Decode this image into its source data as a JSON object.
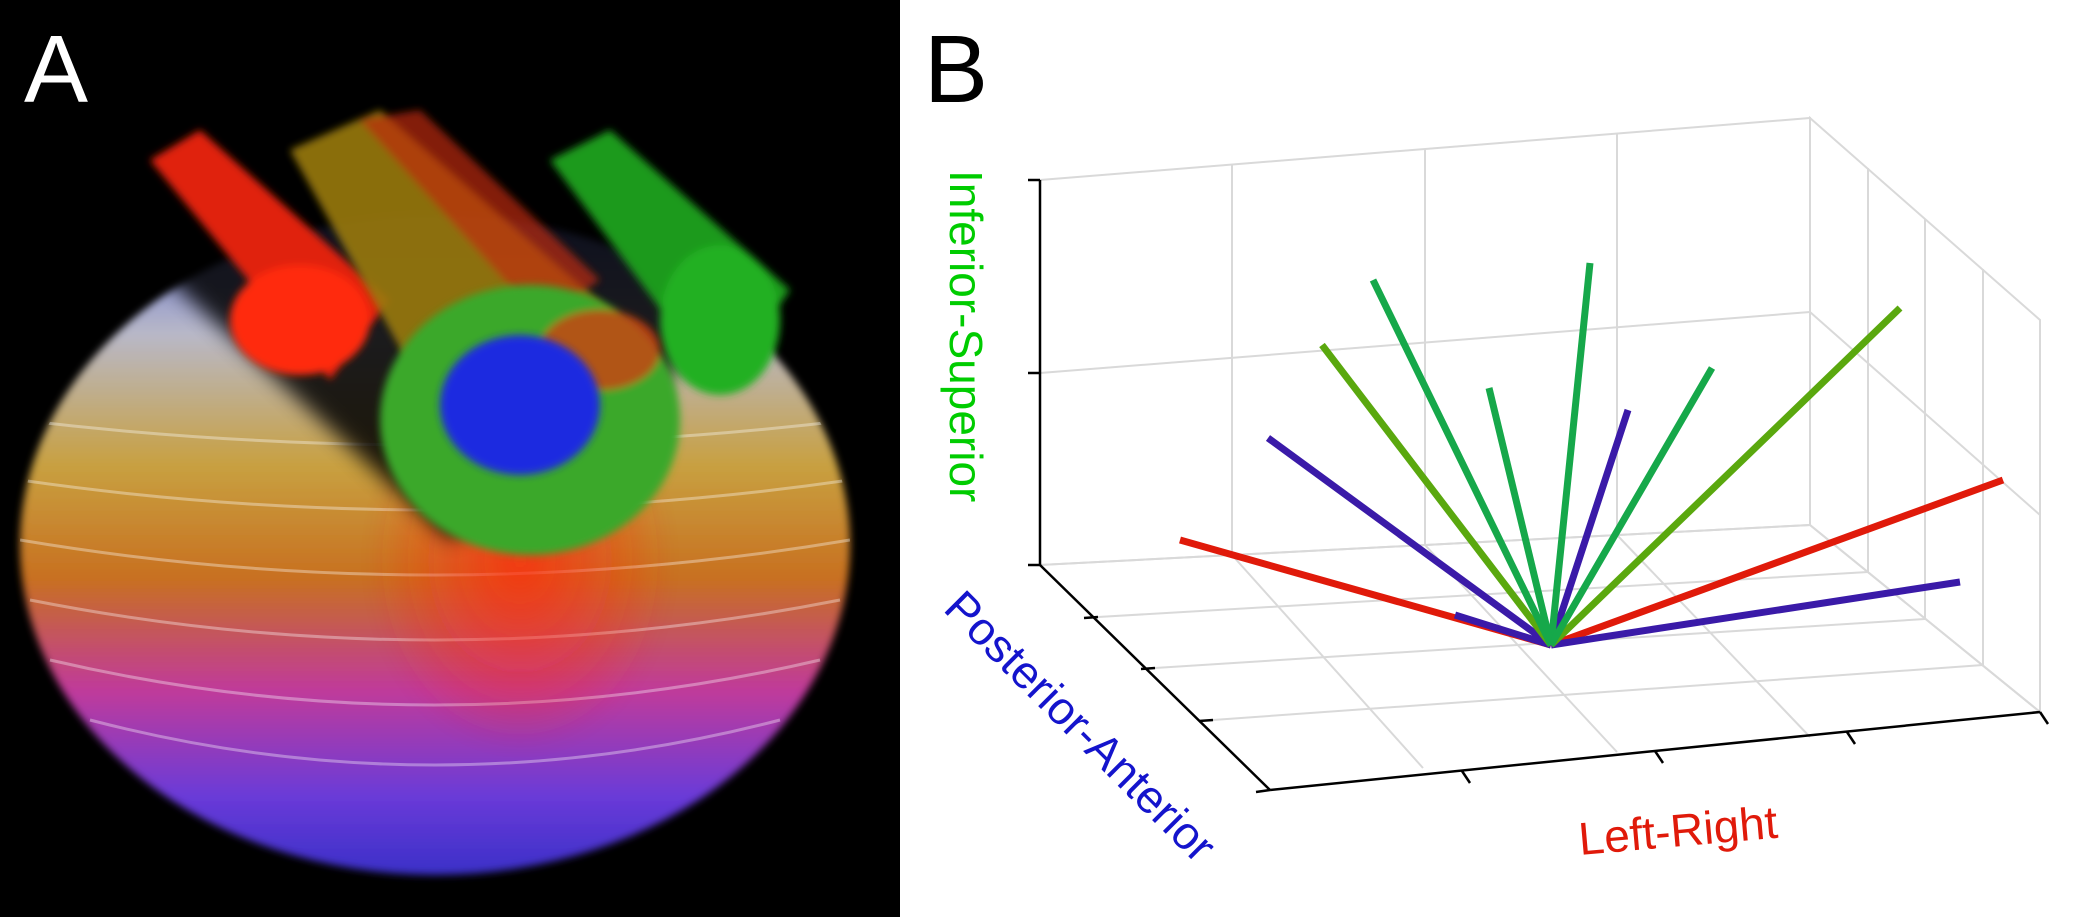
{
  "panels": {
    "a": {
      "letter": "A",
      "description_icon": "volume-rendered-sphere-icon"
    },
    "b": {
      "letter": "B"
    }
  },
  "axes": {
    "inferior_superior": {
      "label": "Inferior-Superior",
      "color": "#00cc00"
    },
    "posterior_anterior": {
      "label": "Posterior-Anterior",
      "color": "#1414cc"
    },
    "left_right": {
      "label": "Left-Right",
      "color": "#e01a0a"
    }
  },
  "colors": {
    "red": "#e01a0a",
    "green": "#16a84a",
    "olive_green": "#5aa80e",
    "blue": "#3a1aa8",
    "grid": "#d9d9d9",
    "axis": "#000000"
  }
}
